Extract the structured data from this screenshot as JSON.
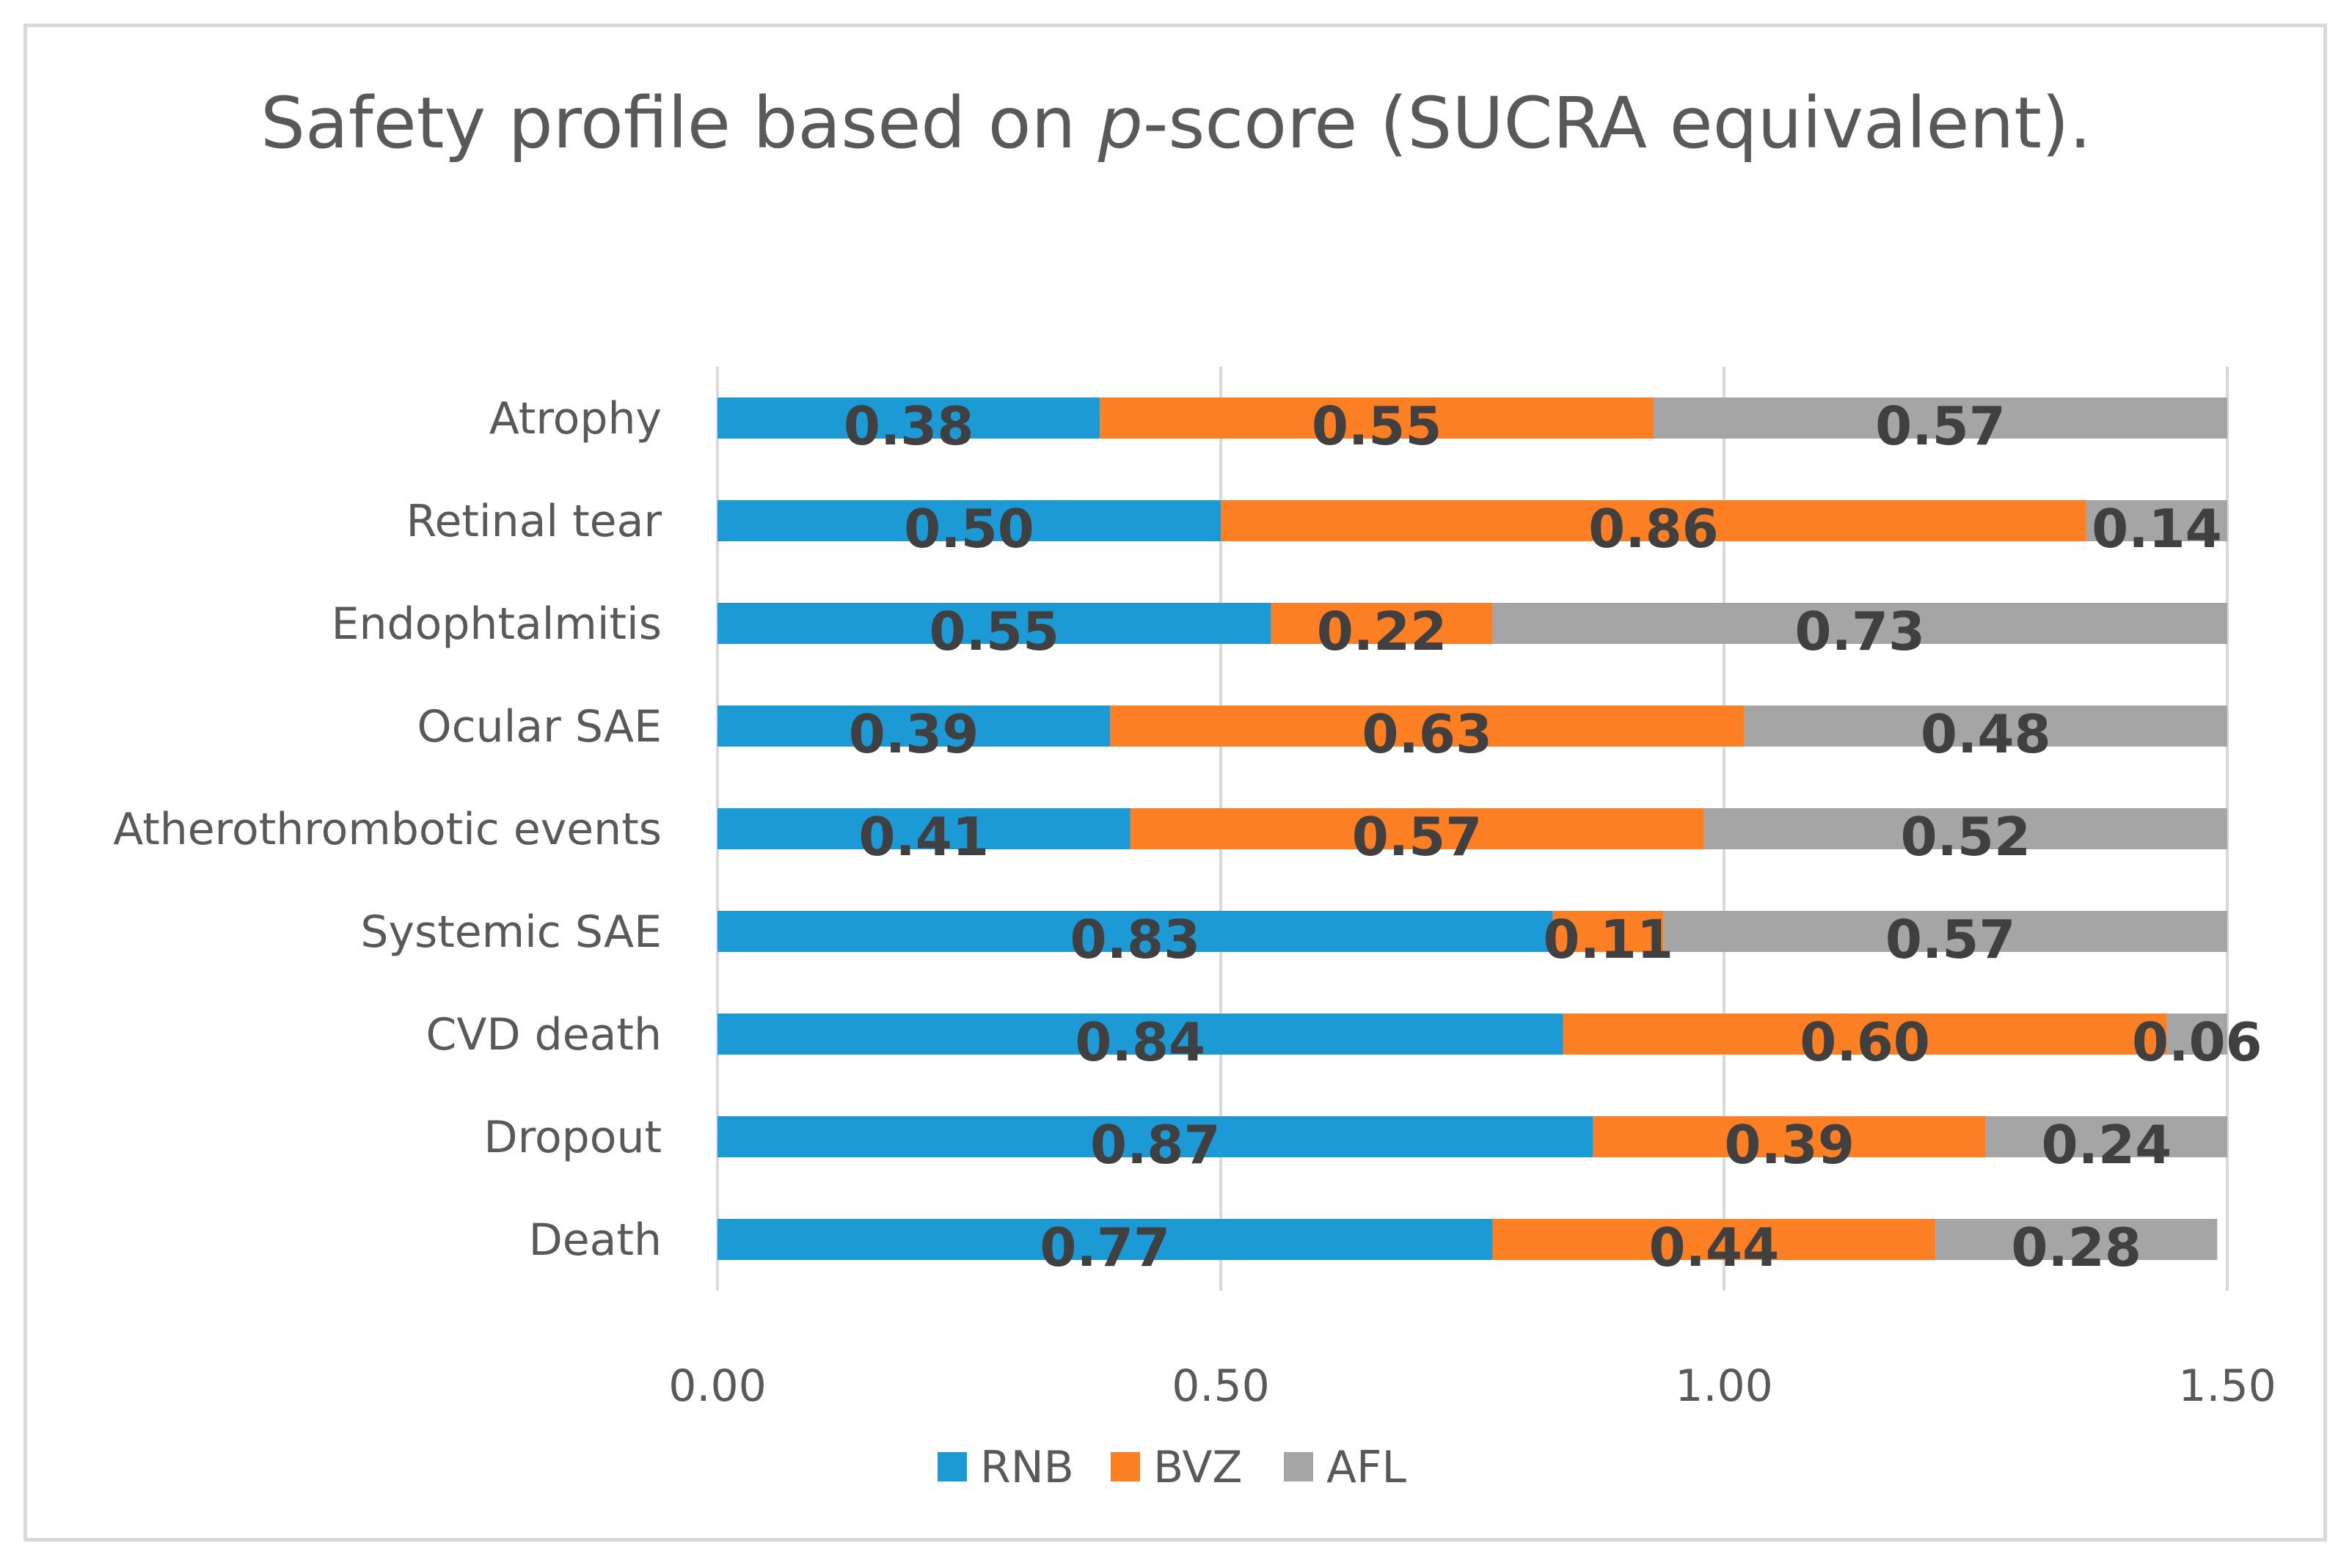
{
  "chart_data": {
    "type": "bar",
    "orientation": "horizontal",
    "stacked": true,
    "title_prefix": "Safety profile based on ",
    "title_italic": "p",
    "title_suffix": "-score (SUCRA equivalent).",
    "categories": [
      "Atrophy",
      "Retinal tear",
      "Endophtalmitis",
      "Ocular SAE",
      "Atherothrombotic events",
      "Systemic SAE",
      "CVD death",
      "Dropout",
      "Death"
    ],
    "series": [
      {
        "name": "RNB",
        "color": "#1c9ad6",
        "values": [
          0.38,
          0.5,
          0.55,
          0.39,
          0.41,
          0.83,
          0.84,
          0.87,
          0.77
        ],
        "labels": [
          "0.38",
          "0.50",
          "0.55",
          "0.39",
          "0.41",
          "0.83",
          "0.84",
          "0.87",
          "0.77"
        ]
      },
      {
        "name": "BVZ",
        "color": "#fd7f23",
        "values": [
          0.55,
          0.86,
          0.22,
          0.63,
          0.57,
          0.11,
          0.6,
          0.39,
          0.44
        ],
        "labels": [
          "0.55",
          "0.86",
          "0.22",
          "0.63",
          "0.57",
          "0.11",
          "0.60",
          "0.39",
          "0.44"
        ]
      },
      {
        "name": "AFL",
        "color": "#a5a5a5",
        "values": [
          0.57,
          0.14,
          0.73,
          0.48,
          0.52,
          0.57,
          0.06,
          0.24,
          0.28
        ],
        "labels": [
          "0.57",
          "0.14",
          "0.73",
          "0.48",
          "0.52",
          "0.57",
          "0.06",
          "0.24",
          "0.28"
        ]
      }
    ],
    "xlim": [
      0,
      1.5
    ],
    "xticks": [
      0,
      0.5,
      1.0,
      1.5
    ],
    "xtick_labels": [
      "0.00",
      "0.50",
      "1.00",
      "1.50"
    ],
    "grid": true,
    "legend_position": "bottom",
    "gridline_color": "#d9d9d9"
  }
}
